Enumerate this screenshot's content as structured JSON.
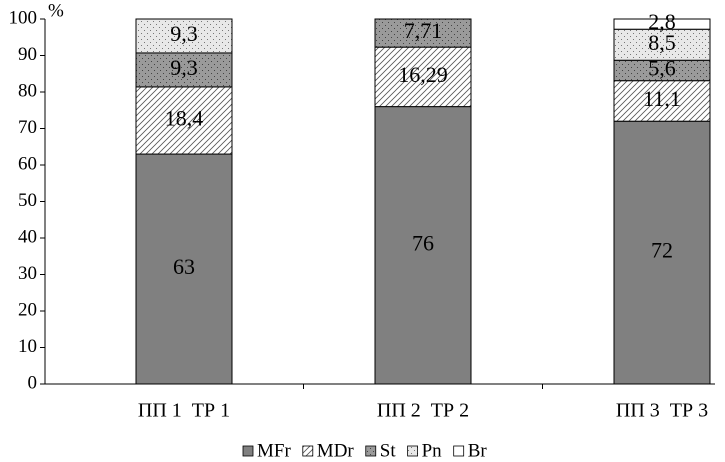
{
  "chart_data": {
    "type": "stacked_bar",
    "y_label": "%",
    "categories": [
      "ПП 1  ТР 1",
      "ПП 2  ТР 2",
      "ПП 3  ТР 3"
    ],
    "series": [
      {
        "name": "MFr",
        "color": "#808080",
        "values": [
          63,
          76,
          72
        ],
        "value_labels": [
          "63",
          "76",
          "72"
        ]
      },
      {
        "name": "MDr",
        "color": "#ffffff",
        "values": [
          18.4,
          16.29,
          11.1
        ],
        "value_labels": [
          "18,4",
          "16,29",
          "11,1"
        ]
      },
      {
        "name": "St",
        "color": "#9a9a9a",
        "values": [
          9.3,
          7.71,
          5.6
        ],
        "value_labels": [
          "9,3",
          "7,71",
          "5,6"
        ]
      },
      {
        "name": "Pn",
        "color": "#e8e8e8",
        "values": [
          9.3,
          null,
          8.5
        ],
        "value_labels": [
          "9,3",
          null,
          "8,5"
        ]
      },
      {
        "name": "Br",
        "color": "#ffffff",
        "values": [
          null,
          null,
          2.8
        ],
        "value_labels": [
          null,
          null,
          "2,8"
        ]
      }
    ],
    "ylim": [
      0,
      100
    ],
    "yticks": [
      0,
      10,
      20,
      30,
      40,
      50,
      60,
      70,
      80,
      90,
      100
    ],
    "legend": "bottom"
  }
}
